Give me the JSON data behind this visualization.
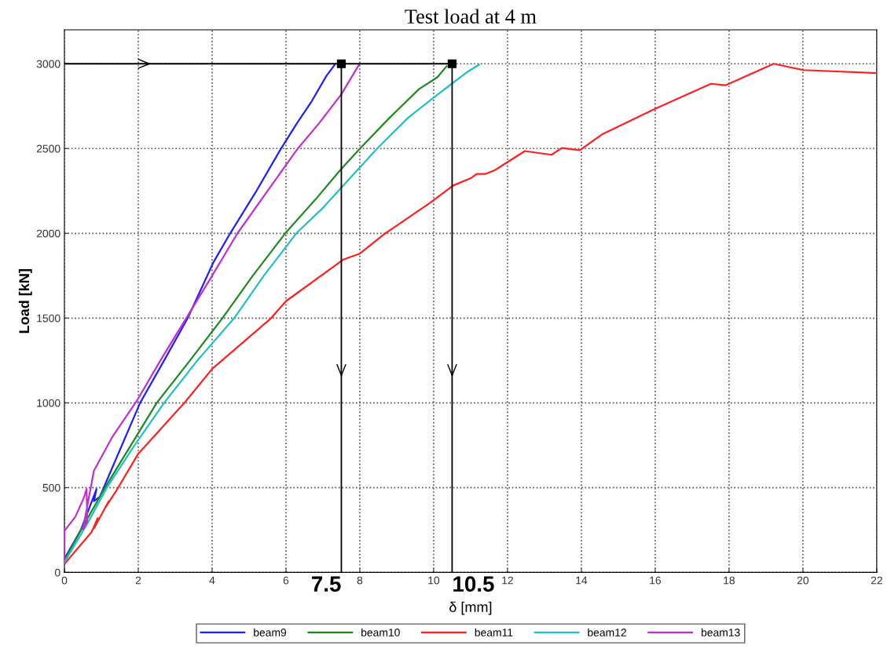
{
  "chart_data": {
    "type": "line",
    "title": "Test load at 4 m",
    "xlabel": "δ [mm]",
    "ylabel": "Load [kN]",
    "xlim": [
      0,
      22
    ],
    "xticks": [
      0,
      2,
      4,
      6,
      8,
      10,
      12,
      14,
      16,
      18,
      20,
      22
    ],
    "ylim": [
      0,
      3200
    ],
    "yticks": [
      0,
      500,
      1000,
      1500,
      2000,
      2500,
      3000
    ],
    "grid": true,
    "legend": "bottom",
    "line_style": "solid",
    "marker": "none",
    "series": [
      {
        "name": "beam9",
        "color": "#1f1fff",
        "x": [
          0,
          0.45,
          0.87,
          0.8,
          0.96,
          1.3,
          2.05,
          2.7,
          3.34,
          4.04,
          4.49,
          5.2,
          5.85,
          6.3,
          6.7,
          7.1,
          7.34
        ],
        "values": [
          80,
          253,
          492,
          420,
          447,
          620,
          1000,
          1250,
          1500,
          1831,
          2000,
          2250,
          2494,
          2650,
          2780,
          2930,
          3000
        ]
      },
      {
        "name": "beam10",
        "color": "#1f8a1f",
        "x": [
          0,
          0.5,
          1.1,
          1.8,
          2.5,
          3.4,
          4.28,
          5.1,
          5.98,
          6.8,
          7.47,
          7.98,
          8.8,
          9.6,
          10.1,
          10.35
        ],
        "values": [
          70,
          270,
          500,
          750,
          1000,
          1250,
          1500,
          1750,
          2000,
          2200,
          2373,
          2494,
          2680,
          2850,
          2920,
          2985
        ]
      },
      {
        "name": "beam11",
        "color": "#ff2020",
        "x": [
          0,
          0.74,
          0.9,
          0.8,
          1.2,
          1.1,
          1.4,
          2,
          3.25,
          4,
          5.6,
          6,
          7.55,
          8,
          8.68,
          9.89,
          10.53,
          11.02,
          11.17,
          11.4,
          11.66,
          12.47,
          13.19,
          13.47,
          13.96,
          14.57,
          15.98,
          17.51,
          17.9,
          19.21,
          20.0,
          21.98
        ],
        "values": [
          50,
          239,
          320,
          260,
          420,
          380,
          480,
          700,
          1000,
          1200,
          1500,
          1600,
          1845,
          1880,
          1998,
          2178,
          2282,
          2327,
          2350,
          2350,
          2373,
          2485,
          2463,
          2503,
          2490,
          2585,
          2733,
          2882,
          2873,
          3000,
          2963,
          2945
        ]
      },
      {
        "name": "beam12",
        "color": "#20c0c8",
        "x": [
          0,
          0.6,
          1.15,
          1.9,
          2.7,
          3.6,
          4.6,
          5.4,
          6.28,
          7.0,
          7.55,
          8.47,
          9.3,
          10.0,
          10.49,
          10.9,
          11.23
        ],
        "values": [
          60,
          280,
          500,
          750,
          1000,
          1250,
          1500,
          1750,
          2000,
          2150,
          2282,
          2500,
          2680,
          2800,
          2882,
          2950,
          2995
        ]
      },
      {
        "name": "beam13",
        "color": "#c030d0",
        "x": [
          0,
          0,
          0.3,
          0.53,
          0.6,
          0.62,
          0.5,
          0.8,
          1.3,
          1.98,
          2.6,
          3.3,
          4.0,
          4.68,
          5.5,
          6.3,
          6.9,
          7.5,
          7.98
        ],
        "values": [
          80,
          244,
          330,
          442,
          492,
          300,
          253,
          600,
          800,
          1019,
          1250,
          1500,
          1750,
          1998,
          2250,
          2494,
          2650,
          2820,
          2995
        ]
      },
      {
        "type": "line",
        "color": "#000000",
        "x": [
          0,
          7.5,
          7.5
        ],
        "values": [
          3000,
          3000,
          0
        ]
      },
      {
        "type": "line",
        "color": "#000000",
        "x": [
          7.5,
          10.5,
          10.5
        ],
        "values": [
          3000,
          3000,
          0
        ]
      },
      {
        "type": "scatter",
        "color": "#000000",
        "marker": "square",
        "x": [
          7.5,
          10.5
        ],
        "values": [
          3000,
          3000
        ]
      }
    ],
    "annotations": [
      {
        "text": "7.5",
        "x": 7.5,
        "y": 0
      },
      {
        "text": "10.5",
        "x": 10.5,
        "y": 0
      }
    ]
  }
}
